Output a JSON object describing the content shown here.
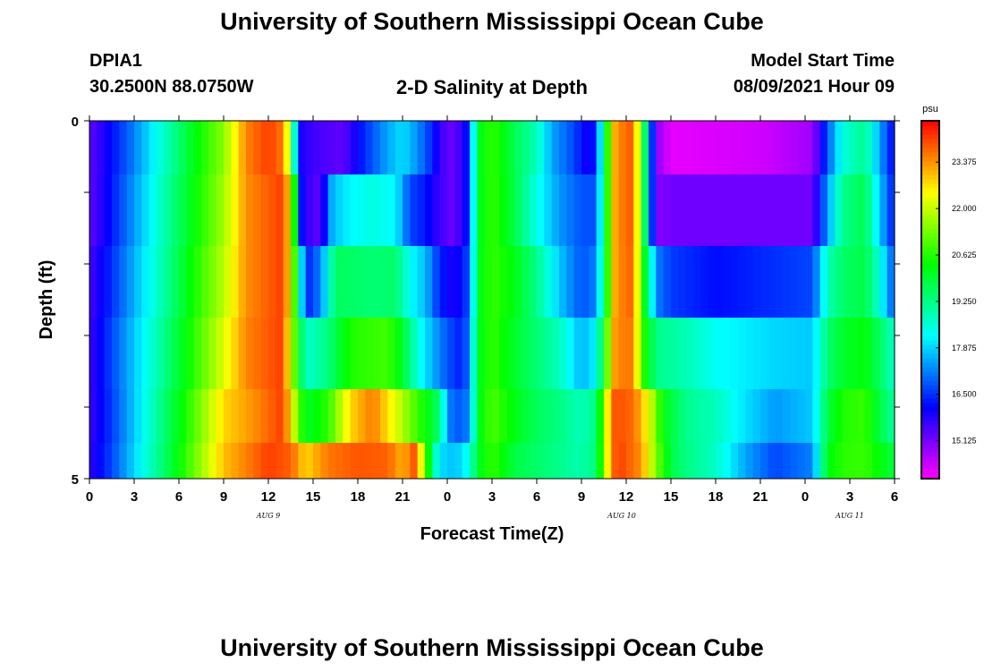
{
  "header": {
    "title_top": "University of Southern Mississippi Ocean Cube",
    "title_bottom": "University of Southern Mississippi Ocean Cube",
    "station": "DPIA1",
    "coords": "30.2500N  88.0750W",
    "plot_title": "2-D Salinity at Depth",
    "model_start_label": "Model Start Time",
    "model_start_value": "08/09/2021 Hour 09"
  },
  "chart_data": {
    "type": "heatmap",
    "title": "2-D Salinity at Depth",
    "xlabel": "Forecast Time(Z)",
    "ylabel": "Depth (ft)",
    "units": "psu",
    "x_hours": [
      0,
      0.5,
      1,
      1.5,
      2,
      2.5,
      3,
      3.5,
      4,
      4.5,
      5,
      5.5,
      6,
      6.5,
      7,
      7.5,
      8,
      8.5,
      9,
      9.5,
      10,
      10.5,
      11,
      11.5,
      12,
      12.5,
      13,
      13.5,
      14,
      14.5,
      15,
      15.5,
      16,
      16.5,
      17,
      17.5,
      18,
      18.5,
      19,
      19.5,
      20,
      20.5,
      21,
      21.5,
      22,
      22.5,
      23,
      23.5,
      24,
      24.5,
      25,
      25.5,
      26,
      26.5,
      27,
      27.5,
      28,
      28.5,
      29,
      29.5,
      30,
      30.5,
      31,
      31.5,
      32,
      32.5,
      33,
      33.5,
      34,
      34.5,
      35,
      35.5,
      36,
      36.5,
      37,
      37.5,
      38,
      38.5,
      39,
      39.5,
      40,
      40.5,
      41,
      41.5,
      42,
      42.5,
      43,
      43.5,
      44,
      44.5,
      45,
      45.5,
      46,
      46.5,
      47,
      47.5,
      48,
      48.5,
      49,
      49.5,
      50,
      50.5,
      51,
      51.5,
      52,
      52.5,
      53,
      53.5
    ],
    "depth_layers_ft": [
      0.25,
      1.25,
      2.25,
      3.25,
      4.25,
      4.75
    ],
    "xlim": [
      0,
      54
    ],
    "ylim": [
      0,
      5
    ],
    "x_tick_labels": [
      "0",
      "3",
      "6",
      "9",
      "12",
      "15",
      "18",
      "21",
      "0",
      "3",
      "6",
      "9",
      "12",
      "15",
      "18",
      "21",
      "0",
      "3",
      "6"
    ],
    "y_tick_labels": [
      "0",
      "5"
    ],
    "date_labels": [
      {
        "text": "AUG 9",
        "hour": 12
      },
      {
        "text": "AUG 10",
        "hour": 35.7
      },
      {
        "text": "AUG 11",
        "hour": 51
      }
    ],
    "colorbar": {
      "min": 14.0,
      "max": 24.6,
      "unit_label": "psu",
      "tick_labels": [
        "15.125",
        "16.500",
        "17.875",
        "19.250",
        "20.625",
        "22.000",
        "23.375"
      ],
      "tick_values": [
        15.125,
        16.5,
        17.875,
        19.25,
        20.625,
        22.0,
        23.375
      ]
    },
    "anchors": [
      [
        [
          0,
          15.3
        ],
        [
          1.5,
          16.2
        ],
        [
          3,
          17.2
        ],
        [
          5,
          18.7
        ],
        [
          7,
          20.2
        ],
        [
          9,
          21.5
        ],
        [
          10.5,
          23.5
        ],
        [
          12,
          24.1
        ],
        [
          13,
          23.6
        ],
        [
          13.5,
          21.3
        ],
        [
          14,
          16.0
        ],
        [
          15,
          15.6
        ],
        [
          17,
          15.3
        ],
        [
          18.5,
          16.5
        ],
        [
          20,
          17.5
        ],
        [
          21,
          18.0
        ],
        [
          22,
          17.3
        ],
        [
          23,
          16.4
        ],
        [
          23.5,
          15.6
        ],
        [
          24.5,
          15.2
        ],
        [
          25.5,
          16.5
        ],
        [
          26,
          20.0
        ],
        [
          27,
          20.8
        ],
        [
          28.5,
          19.7
        ],
        [
          30,
          18.8
        ],
        [
          31,
          17.5
        ],
        [
          32.5,
          16.7
        ],
        [
          33.5,
          15.8
        ],
        [
          34,
          16.6
        ],
        [
          34.8,
          21.0
        ],
        [
          35.3,
          23.4
        ],
        [
          36.5,
          23.9
        ],
        [
          37,
          21.0
        ],
        [
          38,
          15.0
        ],
        [
          39,
          14.2
        ],
        [
          45,
          14.4
        ],
        [
          48.5,
          14.8
        ],
        [
          49.5,
          16.8
        ],
        [
          50.5,
          18.5
        ],
        [
          52,
          19.2
        ],
        [
          53,
          17.5
        ],
        [
          54,
          16.0
        ]
      ],
      [
        [
          0,
          15.3
        ],
        [
          1.5,
          16.3
        ],
        [
          3,
          17.4
        ],
        [
          5,
          18.9
        ],
        [
          7,
          20.3
        ],
        [
          9,
          21.7
        ],
        [
          10.5,
          23.4
        ],
        [
          13,
          24.1
        ],
        [
          13.5,
          22.5
        ],
        [
          14.3,
          15.8
        ],
        [
          15.5,
          15.3
        ],
        [
          16.3,
          17.7
        ],
        [
          17.5,
          18.2
        ],
        [
          19,
          18.5
        ],
        [
          20.5,
          18.2
        ],
        [
          21.5,
          16.7
        ],
        [
          22.5,
          16.3
        ],
        [
          23.5,
          15.6
        ],
        [
          24.5,
          15.2
        ],
        [
          25.5,
          16.5
        ],
        [
          26,
          20.0
        ],
        [
          27,
          20.8
        ],
        [
          28.5,
          19.8
        ],
        [
          30,
          18.4
        ],
        [
          31.5,
          17.4
        ],
        [
          33,
          16.8
        ],
        [
          34,
          16.8
        ],
        [
          34.8,
          21.0
        ],
        [
          35.3,
          23.4
        ],
        [
          36.5,
          23.9
        ],
        [
          37,
          21.0
        ],
        [
          38,
          15.0
        ],
        [
          39,
          15.2
        ],
        [
          48.5,
          15.2
        ],
        [
          49.5,
          17.4
        ],
        [
          50.5,
          19.2
        ],
        [
          52,
          19.7
        ],
        [
          53,
          17.8
        ],
        [
          54,
          16.2
        ]
      ],
      [
        [
          0,
          15.5
        ],
        [
          1.5,
          16.5
        ],
        [
          3,
          17.6
        ],
        [
          5,
          19.0
        ],
        [
          7,
          20.5
        ],
        [
          9,
          21.9
        ],
        [
          10.5,
          23.4
        ],
        [
          13,
          24.1
        ],
        [
          13.5,
          22.5
        ],
        [
          14.5,
          16.3
        ],
        [
          15.5,
          17.2
        ],
        [
          16.5,
          19.6
        ],
        [
          19,
          19.4
        ],
        [
          20.5,
          19.5
        ],
        [
          21.5,
          18.3
        ],
        [
          22.5,
          17.7
        ],
        [
          23.5,
          16.4
        ],
        [
          24.5,
          15.8
        ],
        [
          25.5,
          16.8
        ],
        [
          26,
          20.0
        ],
        [
          27,
          20.8
        ],
        [
          28.5,
          20.2
        ],
        [
          30,
          19.2
        ],
        [
          31.5,
          17.8
        ],
        [
          33,
          16.8
        ],
        [
          34,
          17.2
        ],
        [
          34.8,
          21.0
        ],
        [
          35.3,
          23.4
        ],
        [
          36.5,
          23.8
        ],
        [
          37,
          21.0
        ],
        [
          38,
          17.2
        ],
        [
          39,
          16.6
        ],
        [
          42,
          16.2
        ],
        [
          48.5,
          16.7
        ],
        [
          49.5,
          18.8
        ],
        [
          50.5,
          19.5
        ],
        [
          52,
          19.8
        ],
        [
          53,
          18.5
        ],
        [
          54,
          16.7
        ]
      ],
      [
        [
          0,
          15.6
        ],
        [
          1.5,
          16.7
        ],
        [
          3,
          17.8
        ],
        [
          5,
          19.2
        ],
        [
          7,
          20.7
        ],
        [
          9,
          22.2
        ],
        [
          10.5,
          23.5
        ],
        [
          13,
          24.1
        ],
        [
          13.5,
          22.0
        ],
        [
          14.5,
          18.6
        ],
        [
          16,
          19.3
        ],
        [
          17.5,
          20.6
        ],
        [
          20,
          20.9
        ],
        [
          21,
          20.0
        ],
        [
          22,
          18.5
        ],
        [
          23,
          17.6
        ],
        [
          24,
          16.8
        ],
        [
          25,
          16.3
        ],
        [
          25.5,
          17.3
        ],
        [
          26,
          20.0
        ],
        [
          27,
          20.8
        ],
        [
          28.5,
          20.0
        ],
        [
          30,
          19.4
        ],
        [
          31.5,
          18.8
        ],
        [
          33,
          17.6
        ],
        [
          34,
          18.2
        ],
        [
          34.8,
          21.5
        ],
        [
          35.3,
          23.5
        ],
        [
          36.5,
          23.6
        ],
        [
          37,
          21.0
        ],
        [
          38,
          19.2
        ],
        [
          40,
          18.9
        ],
        [
          42,
          18.3
        ],
        [
          46,
          17.9
        ],
        [
          48.5,
          17.8
        ],
        [
          49.5,
          19.4
        ],
        [
          50.5,
          20.0
        ],
        [
          52,
          20.3
        ],
        [
          53,
          19.6
        ],
        [
          54,
          18.6
        ]
      ],
      [
        [
          0,
          15.6
        ],
        [
          1.5,
          16.6
        ],
        [
          3,
          17.8
        ],
        [
          5,
          19.4
        ],
        [
          7,
          21.0
        ],
        [
          9,
          22.8
        ],
        [
          11,
          23.4
        ],
        [
          13,
          24.1
        ],
        [
          13.8,
          21.8
        ],
        [
          14.5,
          20.0
        ],
        [
          16,
          20.7
        ],
        [
          17.5,
          22.8
        ],
        [
          19,
          23.6
        ],
        [
          20.5,
          22.3
        ],
        [
          21.5,
          21.3
        ],
        [
          22.5,
          20.4
        ],
        [
          23.5,
          19.4
        ],
        [
          24,
          17.4
        ],
        [
          24.5,
          16.8
        ],
        [
          25.5,
          17.2
        ],
        [
          26,
          20.0
        ],
        [
          27,
          21.0
        ],
        [
          28.5,
          20.2
        ],
        [
          30,
          19.6
        ],
        [
          31.5,
          19.3
        ],
        [
          33,
          18.8
        ],
        [
          34,
          19.3
        ],
        [
          34.8,
          22.8
        ],
        [
          35.3,
          24.0
        ],
        [
          36.5,
          23.7
        ],
        [
          37.5,
          22.4
        ],
        [
          38.5,
          20.2
        ],
        [
          40,
          19.2
        ],
        [
          42,
          18.8
        ],
        [
          44,
          18.0
        ],
        [
          46,
          17.4
        ],
        [
          48.5,
          17.8
        ],
        [
          49.5,
          19.8
        ],
        [
          50.5,
          20.6
        ],
        [
          52,
          20.8
        ],
        [
          53,
          19.8
        ],
        [
          54,
          19.0
        ]
      ],
      [
        [
          0,
          15.7
        ],
        [
          1.5,
          16.7
        ],
        [
          3,
          17.9
        ],
        [
          5,
          19.5
        ],
        [
          7,
          21.2
        ],
        [
          9,
          23.0
        ],
        [
          11,
          23.7
        ],
        [
          12,
          24.1
        ],
        [
          13.5,
          23.8
        ],
        [
          14.5,
          22.8
        ],
        [
          16,
          23.6
        ],
        [
          18,
          23.9
        ],
        [
          20,
          23.8
        ],
        [
          21,
          23.1
        ],
        [
          21.8,
          23.9
        ],
        [
          22.5,
          21.5
        ],
        [
          23,
          19.2
        ],
        [
          23.5,
          18.0
        ],
        [
          24.5,
          17.7
        ],
        [
          25.5,
          18.4
        ],
        [
          26,
          20.0
        ],
        [
          27,
          20.8
        ],
        [
          28.5,
          19.8
        ],
        [
          30,
          19.5
        ],
        [
          31.5,
          19.2
        ],
        [
          33,
          18.9
        ],
        [
          34,
          19.4
        ],
        [
          35,
          23.6
        ],
        [
          35.5,
          24.1
        ],
        [
          37,
          23.4
        ],
        [
          38,
          21.4
        ],
        [
          39,
          19.8
        ],
        [
          40,
          19.3
        ],
        [
          42,
          18.7
        ],
        [
          44,
          17.5
        ],
        [
          46,
          16.7
        ],
        [
          48.5,
          17.2
        ],
        [
          49.5,
          20.2
        ],
        [
          50.5,
          20.7
        ],
        [
          52,
          20.8
        ],
        [
          53,
          20.3
        ],
        [
          54,
          19.8
        ]
      ]
    ]
  }
}
